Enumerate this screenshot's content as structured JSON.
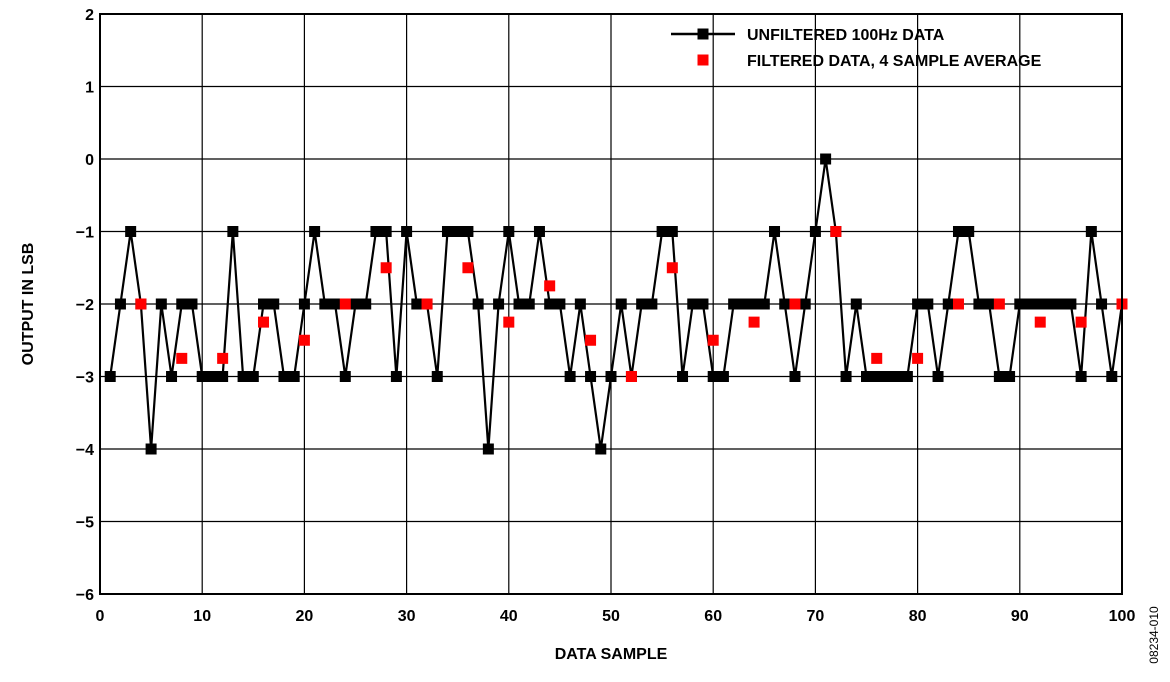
{
  "chart_data": {
    "type": "line",
    "xlabel": "DATA SAMPLE",
    "ylabel": "OUTPUT IN LSB",
    "xlim": [
      0,
      100
    ],
    "ylim": [
      -6,
      2
    ],
    "x_ticks": [
      0,
      10,
      20,
      30,
      40,
      50,
      60,
      70,
      80,
      90,
      100
    ],
    "y_ticks": [
      2,
      1,
      0,
      -1,
      -2,
      -3,
      -4,
      -5,
      -6
    ],
    "y_tick_labels": [
      "2",
      "1",
      "0",
      "−1",
      "−2",
      "−3",
      "−4",
      "−5",
      "−6"
    ],
    "grid": true,
    "legend_position": "top-right",
    "figure_id": "08234-010",
    "series": [
      {
        "name": "UNFILTERED 100Hz DATA",
        "style": "line-with-square-markers",
        "color": "#000000",
        "x": [
          1,
          2,
          3,
          4,
          5,
          6,
          7,
          8,
          9,
          10,
          11,
          12,
          13,
          14,
          15,
          16,
          17,
          18,
          19,
          20,
          21,
          22,
          23,
          24,
          25,
          26,
          27,
          28,
          29,
          30,
          31,
          32,
          33,
          34,
          35,
          36,
          37,
          38,
          39,
          40,
          41,
          42,
          43,
          44,
          45,
          46,
          47,
          48,
          49,
          50,
          51,
          52,
          53,
          54,
          55,
          56,
          57,
          58,
          59,
          60,
          61,
          62,
          63,
          64,
          65,
          66,
          67,
          68,
          69,
          70,
          71,
          72,
          73,
          74,
          75,
          76,
          77,
          78,
          79,
          80,
          81,
          82,
          83,
          84,
          85,
          86,
          87,
          88,
          89,
          90,
          91,
          92,
          93,
          94,
          95,
          96,
          97,
          98,
          99,
          100
        ],
        "values": [
          -3,
          -2,
          -1,
          -2,
          -4,
          -2,
          -3,
          -2,
          -2,
          -3,
          -3,
          -3,
          -1,
          -3,
          -3,
          -2,
          -2,
          -3,
          -3,
          -2,
          -1,
          -2,
          -2,
          -3,
          -2,
          -2,
          -1,
          -1,
          -3,
          -1,
          -2,
          -2,
          -3,
          -1,
          -1,
          -1,
          -2,
          -4,
          -2,
          -1,
          -2,
          -2,
          -1,
          -2,
          -2,
          -3,
          -2,
          -3,
          -4,
          -3,
          -2,
          -3,
          -2,
          -2,
          -1,
          -1,
          -3,
          -2,
          -2,
          -3,
          -3,
          -2,
          -2,
          -2,
          -2,
          -1,
          -2,
          -3,
          -2,
          -1,
          0,
          -1,
          -3,
          -2,
          -3,
          -3,
          -3,
          -3,
          -3,
          -2,
          -2,
          -3,
          -2,
          -1,
          -1,
          -2,
          -2,
          -3,
          -3,
          -2,
          -2,
          -2,
          -2,
          -2,
          -2,
          -3,
          -1,
          -2,
          -3,
          -2
        ]
      },
      {
        "name": "FILTERED DATA, 4 SAMPLE AVERAGE",
        "style": "square-markers",
        "color": "#ff0000",
        "x": [
          4,
          8,
          12,
          16,
          20,
          24,
          28,
          32,
          36,
          40,
          44,
          48,
          52,
          56,
          60,
          64,
          68,
          72,
          76,
          80,
          84,
          88,
          92,
          96,
          100
        ],
        "values": [
          -2,
          -2.75,
          -2.75,
          -2.25,
          -2.5,
          -2,
          -1.5,
          -2,
          -1.5,
          -2.25,
          -1.75,
          -2.5,
          -3,
          -1.5,
          -2.5,
          -2.25,
          -2,
          -1,
          -2.75,
          -2.75,
          -2,
          -2,
          -2.25,
          -2.25,
          -2
        ]
      }
    ]
  }
}
